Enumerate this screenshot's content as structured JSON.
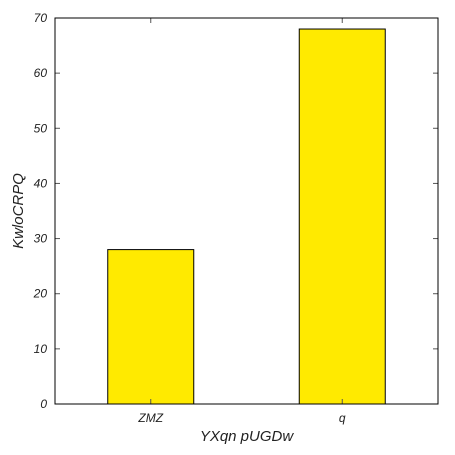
{
  "chart_data": {
    "type": "bar",
    "categories": [
      "ZMZ",
      "q"
    ],
    "values": [
      28,
      68
    ],
    "xlabel": "YXqn pUGDw",
    "ylabel": "KwloCRPQ",
    "ylim": [
      0,
      70
    ],
    "yticks": [
      "0",
      "10",
      "20",
      "30",
      "40",
      "50",
      "60",
      "70"
    ],
    "grid": false,
    "bar_color": "#ffea00",
    "edge_color": "#000000"
  }
}
